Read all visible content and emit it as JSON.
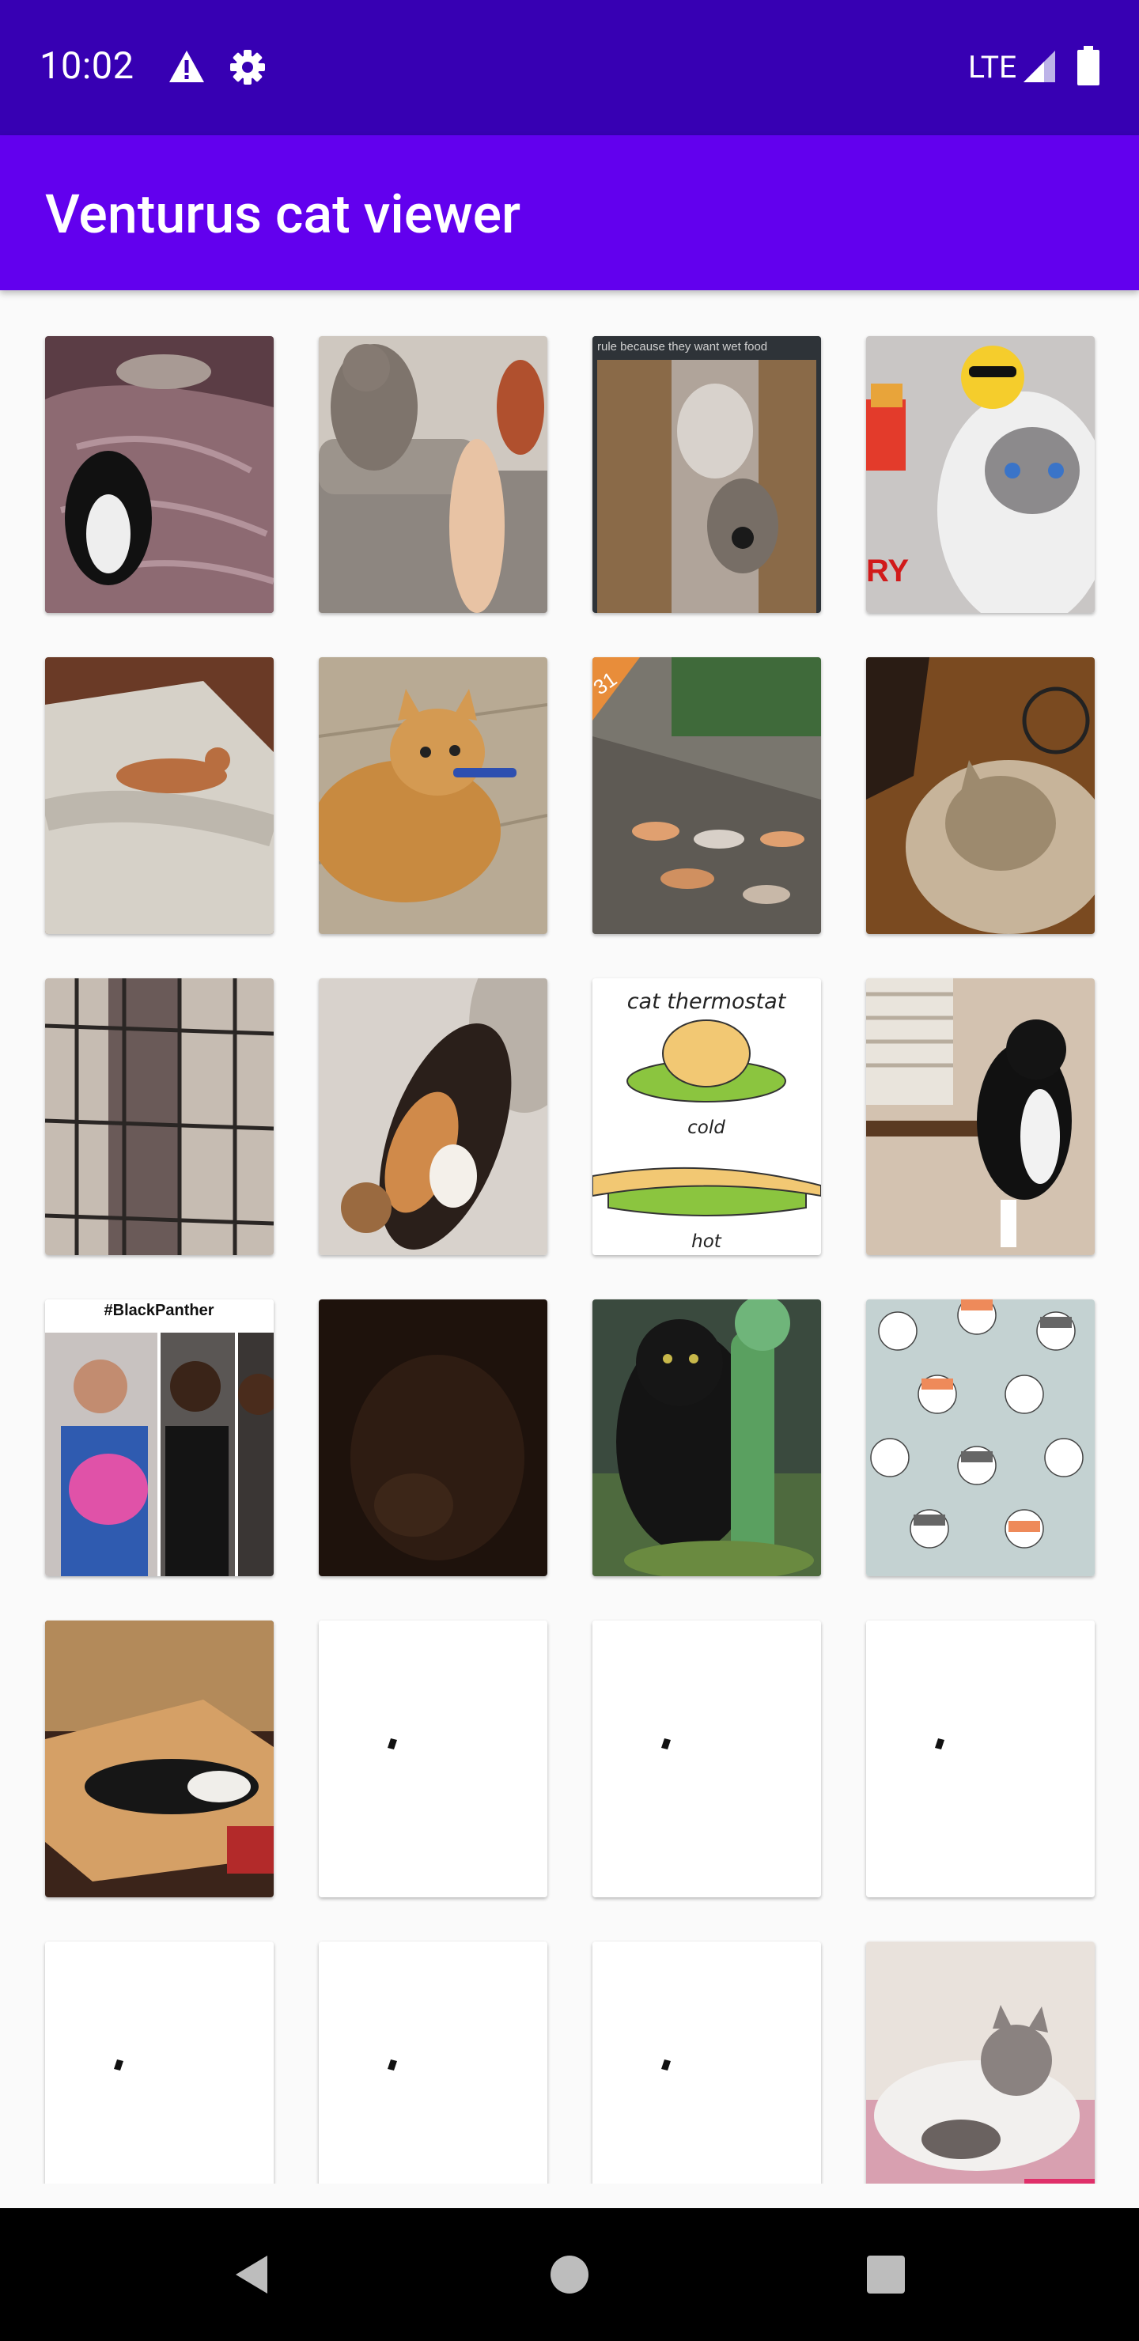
{
  "status_bar": {
    "time": "10:02",
    "network": "LTE",
    "icons": [
      "warning-icon",
      "settings-gear-icon",
      "signal-icon",
      "battery-icon"
    ]
  },
  "app_bar": {
    "title": "Venturus cat viewer"
  },
  "cards": [
    {
      "text": ""
    },
    {
      "text": ""
    },
    {
      "text": "rule because they want wet food"
    },
    {
      "text": "RY"
    },
    {
      "text": ""
    },
    {
      "text": ""
    },
    {
      "text": "31"
    },
    {
      "text": ""
    },
    {
      "text": ""
    },
    {
      "text": ""
    },
    {
      "title": "cat thermostat",
      "label_top": "cold",
      "label_bottom": "hot"
    },
    {
      "text": ""
    },
    {
      "text": "#BlackPanther"
    },
    {
      "text": ""
    },
    {
      "text": ""
    },
    {
      "text": ""
    },
    {
      "text": ""
    },
    {
      "text": ""
    },
    {
      "text": ""
    },
    {
      "text": ""
    },
    {
      "text": ""
    },
    {
      "text": ""
    },
    {
      "text": ""
    },
    {
      "text": ""
    }
  ],
  "nav_bar": {
    "buttons": [
      "back-icon",
      "home-icon",
      "recents-icon"
    ]
  },
  "colors": {
    "status_bar": "#3700b3",
    "app_bar": "#6200ee",
    "background": "#fafafa",
    "nav_bar": "#000000"
  }
}
